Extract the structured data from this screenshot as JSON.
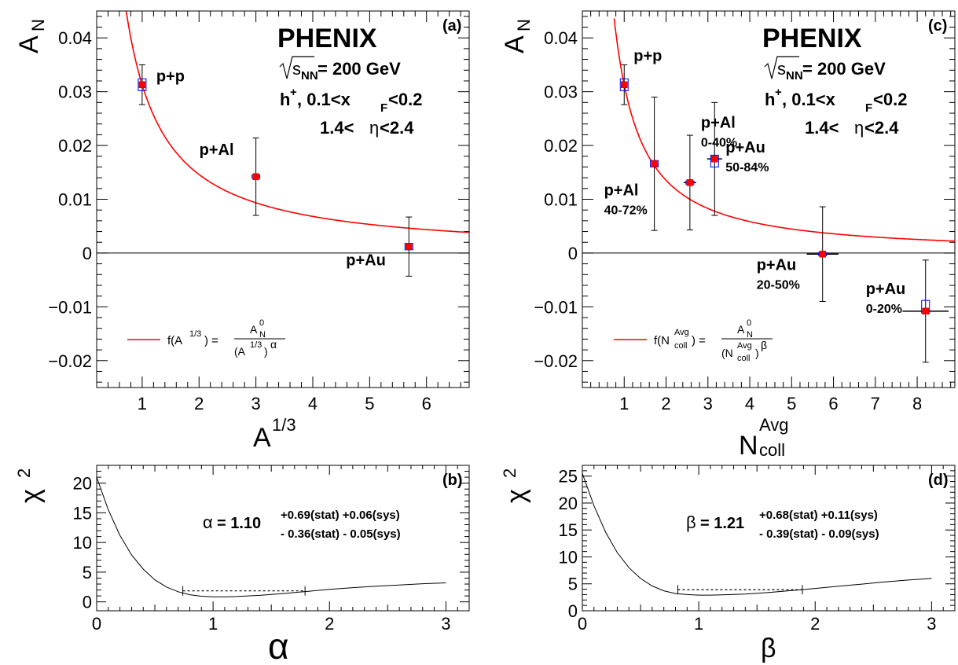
{
  "chart_data": [
    {
      "id": "a",
      "type": "scatter",
      "panel_label": "(a)",
      "title": "PHENIX",
      "xlabel_base": "A",
      "xlabel_sup": "1/3",
      "ylabel_base": "A",
      "ylabel_sub": "N",
      "xlim": [
        0.2,
        6.75
      ],
      "ylim": [
        -0.025,
        0.045
      ],
      "x_ticks": [
        1,
        2,
        3,
        4,
        5,
        6
      ],
      "y_ticks": [
        {
          "v": -0.02,
          "label": "−0.02"
        },
        {
          "v": -0.01,
          "label": "−0.01"
        },
        {
          "v": 0,
          "label": "0"
        },
        {
          "v": 0.01,
          "label": "0.01"
        },
        {
          "v": 0.02,
          "label": "0.02"
        },
        {
          "v": 0.03,
          "label": "0.03"
        },
        {
          "v": 0.04,
          "label": "0.04"
        }
      ],
      "energy": {
        "sqrt": "s",
        "sub": "NN",
        "rest": "= 200 GeV"
      },
      "selection": {
        "h": "h",
        "hsup": "+",
        "cut1": ",  0.1<x",
        "xsub": "F",
        "cut2": "<0.2"
      },
      "eta_pre": "1.4<",
      "eta_sym": "η",
      "eta_post": "<2.4",
      "points": [
        {
          "x": 1.0,
          "y": 0.0313,
          "ystat": 0.0037,
          "box_lo": 0.0302,
          "box_hi": 0.0324,
          "xerr": 0,
          "label": "p+p",
          "cent": ""
        },
        {
          "x": 3.0,
          "y": 0.0142,
          "ystat": 0.0072,
          "box_lo": 0.014,
          "box_hi": 0.0145,
          "xerr": 0,
          "label": "p+Al",
          "cent": ""
        },
        {
          "x": 5.69,
          "y": 0.0012,
          "ystat": 0.0055,
          "box_lo": 0.0006,
          "box_hi": 0.0018,
          "xerr": 0,
          "label": "p+Au",
          "cent": ""
        }
      ],
      "fit": {
        "A0": 0.0313,
        "exponent": 1.1,
        "color": "#ff0000"
      },
      "legend": {
        "lhs": "f(A",
        "lhs_sup": "1/3",
        "lhs_end": ") =",
        "num": "A",
        "num_sup": "0",
        "num_sub": "N",
        "den": "(A",
        "den_sup": "1/3",
        "den_end": ")",
        "den_exp": "α"
      }
    },
    {
      "id": "c",
      "type": "scatter",
      "panel_label": "(c)",
      "title": "PHENIX",
      "xlabel_base": "N",
      "xlabel_sup": "Avg",
      "xlabel_sub": "coll",
      "ylabel_base": "A",
      "ylabel_sub": "N",
      "xlim": [
        0.0,
        8.9
      ],
      "ylim": [
        -0.025,
        0.045
      ],
      "x_ticks": [
        1,
        2,
        3,
        4,
        5,
        6,
        7,
        8
      ],
      "y_ticks": [
        {
          "v": -0.02,
          "label": "−0.02"
        },
        {
          "v": -0.01,
          "label": "−0.01"
        },
        {
          "v": 0,
          "label": "0"
        },
        {
          "v": 0.01,
          "label": "0.01"
        },
        {
          "v": 0.02,
          "label": "0.02"
        },
        {
          "v": 0.03,
          "label": "0.03"
        },
        {
          "v": 0.04,
          "label": "0.04"
        }
      ],
      "energy": {
        "sqrt": "s",
        "sub": "NN",
        "rest": "= 200 GeV"
      },
      "selection": {
        "h": "h",
        "hsup": "+",
        "cut1": ",  0.1<x",
        "xsub": "F",
        "cut2": "<0.2"
      },
      "eta_pre": "1.4<",
      "eta_sym": "η",
      "eta_post": "<2.4",
      "points": [
        {
          "x": 1.0,
          "y": 0.0313,
          "ystat": 0.0037,
          "box_lo": 0.0302,
          "box_hi": 0.0324,
          "xerr": 0,
          "label": "p+p",
          "cent": ""
        },
        {
          "x": 1.72,
          "y": 0.0166,
          "ystat": 0.0124,
          "box_lo": 0.016,
          "box_hi": 0.0172,
          "xerr": 0.05,
          "label": "p+Al",
          "cent": "40-72%"
        },
        {
          "x": 2.57,
          "y": 0.0131,
          "ystat": 0.0088,
          "box_lo": 0.0128,
          "box_hi": 0.0134,
          "xerr": 0.15,
          "label": "p+Al",
          "cent": "0-40%"
        },
        {
          "x": 3.16,
          "y": 0.0175,
          "ystat": 0.0105,
          "box_lo": 0.016,
          "box_hi": 0.0182,
          "xerr": 0.18,
          "label": "p+Au",
          "cent": "50-84%"
        },
        {
          "x": 5.74,
          "y": -0.0002,
          "ystat": 0.0088,
          "box_lo": -0.0005,
          "box_hi": 0.0001,
          "xerr": 0.38,
          "label": "p+Au",
          "cent": "20-50%"
        },
        {
          "x": 8.2,
          "y": -0.0108,
          "ystat": 0.0095,
          "box_lo": -0.0112,
          "box_hi": -0.0088,
          "xerr": 0.55,
          "label": "p+Au",
          "cent": "0-20%"
        }
      ],
      "fit": {
        "A0": 0.0313,
        "exponent": 1.21,
        "color": "#ff0000"
      },
      "legend": {
        "lhs": "f(N",
        "lhs_sup": "Avg",
        "lhs_sub": "coll",
        "lhs_end": ") =",
        "num": "A",
        "num_sup": "0",
        "num_sub": "N",
        "den": "(N",
        "den_sup": "Avg",
        "den_sub": "coll",
        "den_end": ")",
        "den_exp": "β"
      }
    },
    {
      "id": "b",
      "type": "line",
      "panel_label": "(b)",
      "xlabel": "α",
      "ylabel_base": "χ",
      "ylabel_sup": "2",
      "xlim": [
        0,
        3.2
      ],
      "ylim": [
        -1.5,
        23
      ],
      "x_ticks": [
        0,
        1,
        2,
        3
      ],
      "y_ticks": [
        0,
        5,
        10,
        15,
        20
      ],
      "curve": {
        "x": [
          0,
          0.1,
          0.2,
          0.3,
          0.4,
          0.5,
          0.6,
          0.7,
          0.8,
          0.9,
          1.0,
          1.1,
          1.2,
          1.4,
          1.6,
          1.8,
          2.0,
          2.2,
          2.4,
          2.6,
          2.8,
          3.0
        ],
        "y": [
          21,
          15.5,
          11.2,
          7.9,
          5.5,
          3.7,
          2.5,
          1.7,
          1.2,
          0.95,
          0.85,
          0.85,
          0.9,
          1.1,
          1.4,
          1.75,
          2.1,
          2.4,
          2.65,
          2.85,
          3.05,
          3.2
        ]
      },
      "interval": {
        "lo": 0.74,
        "hi": 1.79,
        "level": 1.85
      },
      "result": {
        "sym": "α",
        "value": "= 1.10",
        "up": "+0.69(stat) +0.06(sys)",
        "down": "- 0.36(stat)  - 0.05(sys)"
      }
    },
    {
      "id": "d",
      "type": "line",
      "panel_label": "(d)",
      "xlabel": "β",
      "ylabel_base": "χ",
      "ylabel_sup": "2",
      "xlim": [
        0,
        3.2
      ],
      "ylim": [
        0,
        27
      ],
      "x_ticks": [
        0,
        1,
        2,
        3
      ],
      "y_ticks": [
        0,
        5,
        10,
        15,
        20,
        25
      ],
      "curve": {
        "x": [
          0,
          0.1,
          0.2,
          0.3,
          0.4,
          0.5,
          0.6,
          0.7,
          0.8,
          0.9,
          1.0,
          1.1,
          1.2,
          1.4,
          1.6,
          1.8,
          2.0,
          2.2,
          2.4,
          2.6,
          2.8,
          3.0
        ],
        "y": [
          25.5,
          19.5,
          14.6,
          10.8,
          8.0,
          6.0,
          4.6,
          3.7,
          3.2,
          3.0,
          2.9,
          2.9,
          2.95,
          3.1,
          3.4,
          3.75,
          4.15,
          4.55,
          4.95,
          5.35,
          5.7,
          6.0
        ]
      },
      "interval": {
        "lo": 0.82,
        "hi": 1.89,
        "level": 3.9
      },
      "result": {
        "sym": "β",
        "value": "= 1.21",
        "up": "+0.68(stat) +0.11(sys)",
        "down": "- 0.39(stat)  - 0.09(sys)"
      }
    }
  ]
}
